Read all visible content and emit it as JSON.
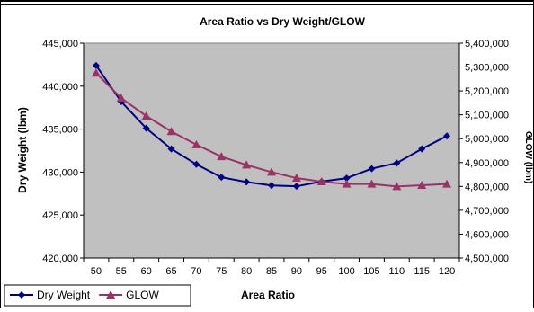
{
  "chart_data": {
    "type": "line",
    "title": "Area Ratio vs Dry Weight/GLOW",
    "xlabel": "Area Ratio",
    "ylabel": "Dry Weight (lbm)",
    "y2label": "GLOW (lbm)",
    "x": [
      50,
      55,
      60,
      65,
      70,
      75,
      80,
      85,
      90,
      95,
      100,
      105,
      110,
      115,
      120
    ],
    "ylim": [
      420000,
      445000
    ],
    "y2lim": [
      4500000,
      5400000
    ],
    "y_ticks": [
      "420,000",
      "425,000",
      "430,000",
      "435,000",
      "440,000",
      "445,000"
    ],
    "y2_ticks": [
      "4,500,000",
      "4,600,000",
      "4,700,000",
      "4,800,000",
      "4,900,000",
      "5,000,000",
      "5,100,000",
      "5,200,000",
      "5,300,000",
      "5,400,000"
    ],
    "series": [
      {
        "name": "Dry Weight",
        "axis": "left",
        "marker": "diamond",
        "color": "#000080",
        "values": [
          442400,
          438200,
          435100,
          432700,
          430900,
          429400,
          428850,
          428450,
          428350,
          428900,
          429300,
          430400,
          431050,
          432700,
          434200
        ]
      },
      {
        "name": "GLOW",
        "axis": "right",
        "marker": "triangle",
        "color": "#993366",
        "values": [
          5275000,
          5170000,
          5095000,
          5030000,
          4975000,
          4925000,
          4890000,
          4860000,
          4835000,
          4820000,
          4810000,
          4810000,
          4800000,
          4805000,
          4810000
        ]
      }
    ],
    "plot_background": "#c0c0c0",
    "grid": false,
    "legend": "bottom-left"
  }
}
